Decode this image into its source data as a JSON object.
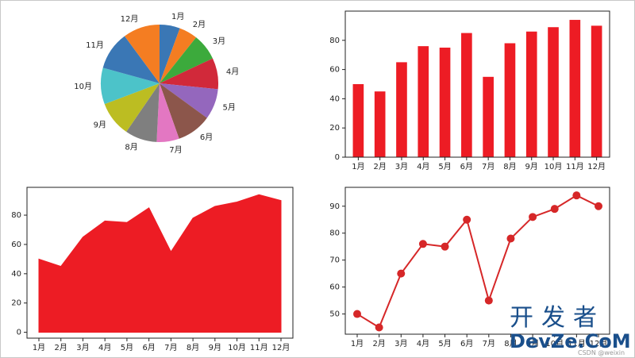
{
  "chart_data": [
    {
      "type": "pie",
      "categories": [
        "1月",
        "2月",
        "3月",
        "4月",
        "5月",
        "6月",
        "7月",
        "8月",
        "9月",
        "10月",
        "11月",
        "12月"
      ],
      "values": [
        50,
        45,
        65,
        76,
        75,
        85,
        55,
        78,
        86,
        89,
        94,
        90
      ],
      "colors": [
        "#3a77b5",
        "#f47d22",
        "#3caa3c",
        "#d1293a",
        "#9467bd",
        "#8c564b",
        "#e377c2",
        "#7f7f7f",
        "#bcbd22",
        "#4cc3c9",
        "#3a77b5",
        "#f47d22"
      ]
    },
    {
      "type": "bar",
      "categories": [
        "1月",
        "2月",
        "3月",
        "4月",
        "5月",
        "6月",
        "7月",
        "8月",
        "9月",
        "10月",
        "11月",
        "12月"
      ],
      "values": [
        50,
        45,
        65,
        76,
        75,
        85,
        55,
        78,
        86,
        89,
        94,
        90
      ],
      "ylim": [
        0,
        100
      ],
      "yticks": [
        0,
        20,
        40,
        60,
        80
      ],
      "color": "#ed1c24"
    },
    {
      "type": "area",
      "categories": [
        "1月",
        "2月",
        "3月",
        "4月",
        "5月",
        "6月",
        "7月",
        "8月",
        "9月",
        "10月",
        "11月",
        "12月"
      ],
      "values": [
        50,
        45,
        65,
        76,
        75,
        85,
        55,
        78,
        86,
        89,
        94,
        90
      ],
      "ylim": [
        -4,
        99
      ],
      "yticks": [
        0,
        20,
        40,
        60,
        80
      ],
      "color": "#ed1c24"
    },
    {
      "type": "line",
      "categories": [
        "1月",
        "2月",
        "3月",
        "4月",
        "5月",
        "6月",
        "7月",
        "8月",
        "9月",
        "10月",
        "11月",
        "12月"
      ],
      "values": [
        50,
        45,
        65,
        76,
        75,
        85,
        55,
        78,
        86,
        89,
        94,
        90
      ],
      "ylim": [
        42.5,
        97
      ],
      "yticks": [
        50,
        60,
        70,
        80,
        90
      ],
      "color": "#d62728"
    }
  ],
  "watermark": {
    "line1": "开发者",
    "line2": "DevZe.CoM",
    "line3": "CSDN @weixin"
  }
}
